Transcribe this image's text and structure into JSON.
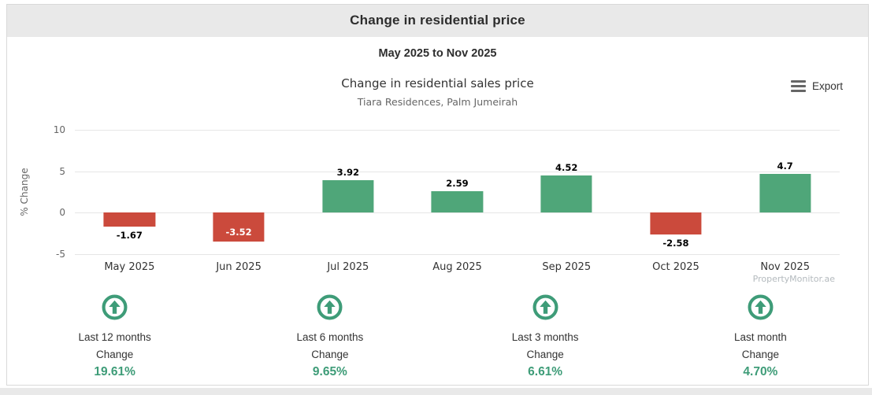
{
  "header": {
    "title": "Change in residential price"
  },
  "subheader": {
    "date_range": "May 2025 to Nov 2025"
  },
  "chart": {
    "export_label": "Export",
    "export_icon": "hamburger-menu-icon",
    "watermark": "PropertyMonitor.ae"
  },
  "chart_data": {
    "type": "bar",
    "title": "Change in residential sales price",
    "subtitle": "Tiara Residences, Palm Jumeirah",
    "categories": [
      "May 2025",
      "Jun 2025",
      "Jul 2025",
      "Aug 2025",
      "Sep 2025",
      "Oct 2025",
      "Nov 2025"
    ],
    "values": [
      -1.67,
      -3.52,
      3.92,
      2.59,
      4.52,
      -2.58,
      4.7
    ],
    "value_labels": [
      "-1.67",
      "-3.52",
      "3.92",
      "2.59",
      "4.52",
      "-2.58",
      "4.7"
    ],
    "label_positions": [
      "below",
      "inside",
      "above",
      "above",
      "above",
      "below",
      "above"
    ],
    "xlabel": "",
    "ylabel": "% Change",
    "ylim": [
      -5,
      10
    ],
    "yticks": [
      10,
      5,
      0,
      -5
    ],
    "ytick_labels": [
      "10",
      "5",
      "0",
      "-5"
    ],
    "grid": true,
    "legend": "none",
    "colors": {
      "positive": "#4fa679",
      "negative": "#cb4a3c"
    }
  },
  "stats": [
    {
      "icon": "up-arrow-circle-icon",
      "label": "Last 12 months",
      "sublabel": "Change",
      "value": "19.61%"
    },
    {
      "icon": "up-arrow-circle-icon",
      "label": "Last 6 months",
      "sublabel": "Change",
      "value": "9.65%"
    },
    {
      "icon": "up-arrow-circle-icon",
      "label": "Last 3 months",
      "sublabel": "Change",
      "value": "6.61%"
    },
    {
      "icon": "up-arrow-circle-icon",
      "label": "Last month",
      "sublabel": "Change",
      "value": "4.70%"
    }
  ],
  "colors": {
    "accent_green": "#3e9c78",
    "bar_positive": "#4fa679",
    "bar_negative": "#cb4a3c",
    "header_bg": "#e9e9e9",
    "gridline": "#e6e6e6"
  }
}
